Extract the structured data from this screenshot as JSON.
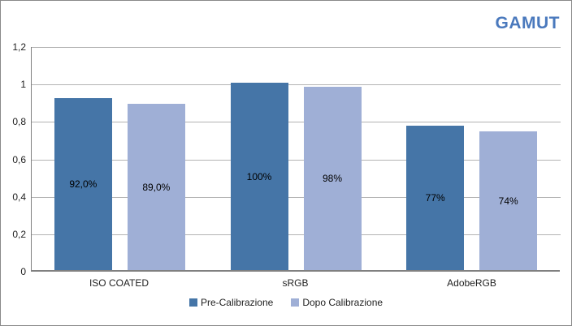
{
  "title": "GAMUT",
  "title_color": "#4a79bd",
  "chart_data": {
    "type": "bar",
    "categories": [
      "ISO COATED",
      "sRGB",
      "AdobeRGB"
    ],
    "series": [
      {
        "name": "Pre-Calibrazione",
        "color": "#4575a7",
        "values": [
          0.92,
          1.0,
          0.77
        ],
        "labels": [
          "92,0%",
          "100%",
          "77%"
        ]
      },
      {
        "name": "Dopo Calibrazione",
        "color": "#9fafd6",
        "values": [
          0.89,
          0.98,
          0.74
        ],
        "labels": [
          "89,0%",
          "98%",
          "74%"
        ]
      }
    ],
    "ylim": [
      0,
      1.2
    ],
    "ytick_interval": 0.2,
    "ytick_labels": [
      "0",
      "0,2",
      "0,4",
      "0,6",
      "0,8",
      "1",
      "1,2"
    ],
    "grid": true,
    "legend_position": "bottom",
    "axis_color": "#808080",
    "gridline_color": "#b3b3b3"
  }
}
